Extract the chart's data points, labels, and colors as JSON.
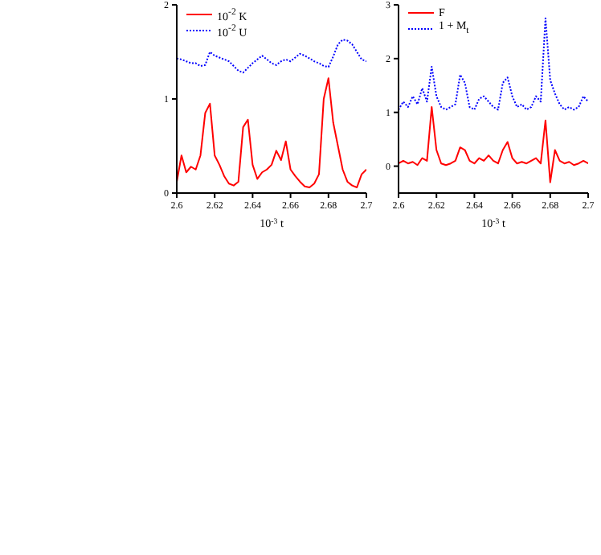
{
  "chart_data": [
    {
      "type": "line",
      "xlabel": "10$^{-3}$ t",
      "x": [
        2.6,
        2.6025,
        2.605,
        2.6075,
        2.61,
        2.6125,
        2.615,
        2.6175,
        2.62,
        2.6225,
        2.625,
        2.6275,
        2.63,
        2.6325,
        2.635,
        2.6375,
        2.64,
        2.6425,
        2.645,
        2.6475,
        2.65,
        2.6525,
        2.655,
        2.6575,
        2.66,
        2.6625,
        2.665,
        2.6675,
        2.67,
        2.6725,
        2.675,
        2.6775,
        2.68,
        2.6825,
        2.685,
        2.6875,
        2.69,
        2.6925,
        2.695,
        2.6975,
        2.7
      ],
      "series": [
        {
          "name": "10$^{-2}$ K",
          "color": "#ff0000",
          "line_style": "solid",
          "values": [
            0.12,
            0.4,
            0.22,
            0.28,
            0.25,
            0.4,
            0.85,
            0.95,
            0.4,
            0.3,
            0.18,
            0.1,
            0.08,
            0.12,
            0.7,
            0.78,
            0.3,
            0.15,
            0.22,
            0.25,
            0.3,
            0.45,
            0.35,
            0.55,
            0.25,
            0.18,
            0.12,
            0.07,
            0.06,
            0.1,
            0.2,
            1.0,
            1.22,
            0.75,
            0.5,
            0.25,
            0.12,
            0.08,
            0.06,
            0.2,
            0.25
          ]
        },
        {
          "name": "10$^{-2}$ U",
          "color": "#0000ff",
          "line_style": "dotted",
          "values": [
            1.43,
            1.42,
            1.4,
            1.38,
            1.38,
            1.35,
            1.36,
            1.5,
            1.46,
            1.44,
            1.42,
            1.4,
            1.35,
            1.3,
            1.28,
            1.33,
            1.38,
            1.42,
            1.46,
            1.42,
            1.38,
            1.36,
            1.4,
            1.42,
            1.4,
            1.44,
            1.48,
            1.46,
            1.43,
            1.4,
            1.38,
            1.35,
            1.34,
            1.45,
            1.58,
            1.63,
            1.62,
            1.58,
            1.5,
            1.42,
            1.4
          ]
        }
      ],
      "xlim": [
        2.6,
        2.7
      ],
      "xticks": [
        2.6,
        2.62,
        2.64,
        2.66,
        2.68,
        2.7
      ],
      "ylim": [
        0,
        2
      ],
      "yticks": [
        0,
        1,
        2
      ],
      "legend": "top left",
      "grid": false,
      "marker": "none"
    },
    {
      "type": "line",
      "xlabel": "10$^{-3}$ t",
      "x": [
        2.6,
        2.6025,
        2.605,
        2.6075,
        2.61,
        2.6125,
        2.615,
        2.6175,
        2.62,
        2.6225,
        2.625,
        2.6275,
        2.63,
        2.6325,
        2.635,
        2.6375,
        2.64,
        2.6425,
        2.645,
        2.6475,
        2.65,
        2.6525,
        2.655,
        2.6575,
        2.66,
        2.6625,
        2.665,
        2.6675,
        2.67,
        2.6725,
        2.675,
        2.6775,
        2.68,
        2.6825,
        2.685,
        2.6875,
        2.69,
        2.6925,
        2.695,
        2.6975,
        2.7
      ],
      "series": [
        {
          "name": "F",
          "color": "#ff0000",
          "line_style": "solid",
          "values": [
            0.05,
            0.1,
            0.05,
            0.08,
            0.02,
            0.15,
            0.1,
            1.1,
            0.3,
            0.05,
            0.02,
            0.05,
            0.1,
            0.35,
            0.3,
            0.1,
            0.05,
            0.15,
            0.1,
            0.2,
            0.1,
            0.05,
            0.3,
            0.45,
            0.15,
            0.05,
            0.08,
            0.05,
            0.1,
            0.15,
            0.05,
            0.85,
            -0.3,
            0.3,
            0.1,
            0.05,
            0.08,
            0.02,
            0.05,
            0.1,
            0.05
          ]
        },
        {
          "name": "1 + M$_{t}$",
          "color": "#0000ff",
          "line_style": "dotted",
          "values": [
            1.05,
            1.2,
            1.1,
            1.3,
            1.15,
            1.45,
            1.2,
            1.85,
            1.3,
            1.1,
            1.05,
            1.1,
            1.15,
            1.7,
            1.55,
            1.1,
            1.05,
            1.25,
            1.3,
            1.2,
            1.1,
            1.05,
            1.55,
            1.65,
            1.3,
            1.1,
            1.15,
            1.05,
            1.1,
            1.3,
            1.2,
            2.75,
            1.6,
            1.35,
            1.15,
            1.05,
            1.1,
            1.05,
            1.1,
            1.3,
            1.2
          ]
        }
      ],
      "xlim": [
        2.6,
        2.7
      ],
      "xticks": [
        2.6,
        2.62,
        2.64,
        2.66,
        2.68,
        2.7
      ],
      "ylim": [
        -0.5,
        3
      ],
      "yticks": [
        0,
        1,
        2,
        3
      ],
      "legend": "top left",
      "grid": false,
      "marker": "none"
    }
  ]
}
